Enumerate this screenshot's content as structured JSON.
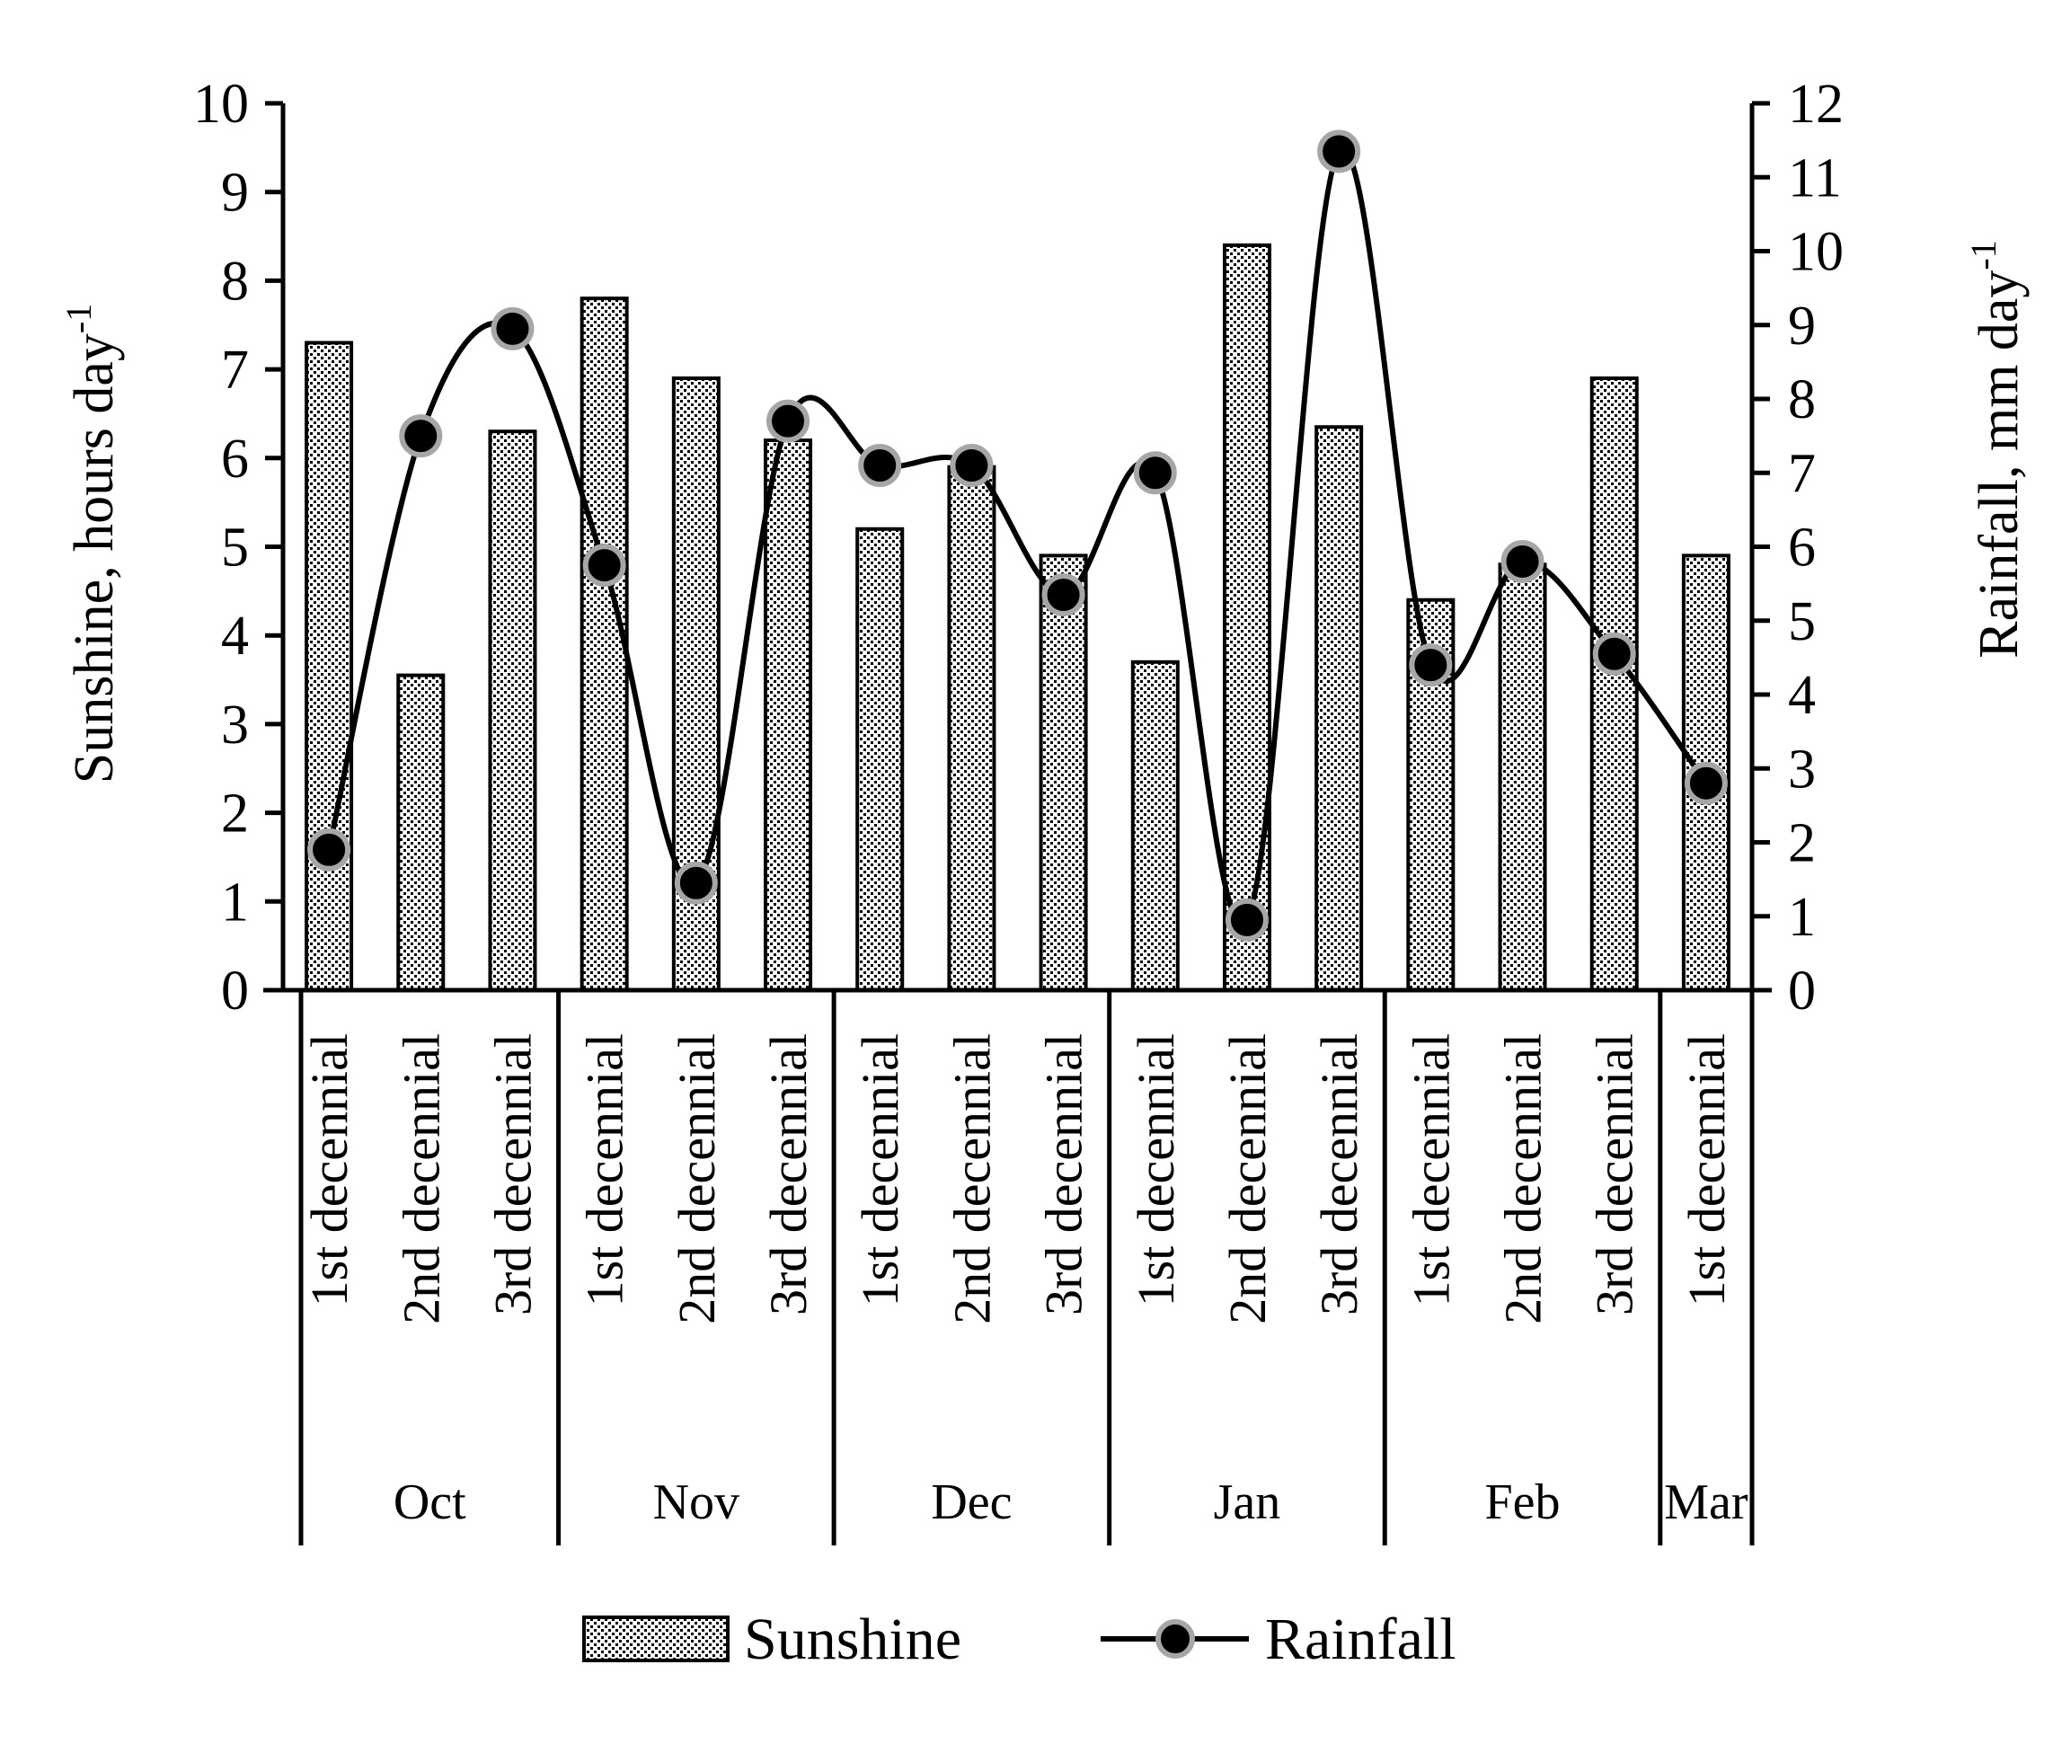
{
  "chart_data": {
    "type": "bar+line",
    "title": "",
    "categories": [
      {
        "label": "1st decennial",
        "month": "Oct"
      },
      {
        "label": "2nd decennial",
        "month": "Oct"
      },
      {
        "label": "3rd decennial",
        "month": "Oct"
      },
      {
        "label": "1st decennial",
        "month": "Nov"
      },
      {
        "label": "2nd decennial",
        "month": "Nov"
      },
      {
        "label": "3rd decennial",
        "month": "Nov"
      },
      {
        "label": "1st decennial",
        "month": "Dec"
      },
      {
        "label": "2nd decennial",
        "month": "Dec"
      },
      {
        "label": "3rd decennial",
        "month": "Dec"
      },
      {
        "label": "1st decennial",
        "month": "Jan"
      },
      {
        "label": "2nd decennial",
        "month": "Jan"
      },
      {
        "label": "3rd decennial",
        "month": "Jan"
      },
      {
        "label": "1st decennial",
        "month": "Feb"
      },
      {
        "label": "2nd decennial",
        "month": "Feb"
      },
      {
        "label": "3rd decennial",
        "month": "Feb"
      },
      {
        "label": "1st decennial",
        "month": "Mar"
      }
    ],
    "months": [
      "Oct",
      "Nov",
      "Dec",
      "Jan",
      "Feb",
      "Mar"
    ],
    "series": [
      {
        "name": "Sunshine",
        "type": "bar",
        "axis": "left",
        "values": [
          7.3,
          3.55,
          6.3,
          7.8,
          6.9,
          6.2,
          5.2,
          5.9,
          4.9,
          3.7,
          8.4,
          6.35,
          4.4,
          4.8,
          6.9,
          4.9
        ]
      },
      {
        "name": "Rainfall",
        "type": "line",
        "axis": "right",
        "values": [
          1.9,
          7.5,
          8.95,
          5.75,
          1.45,
          7.7,
          7.1,
          7.1,
          5.35,
          7.0,
          0.95,
          11.35,
          4.4,
          5.8,
          4.55,
          2.8
        ]
      }
    ],
    "ylabel": "Sunshine, hours day",
    "ylabel_sup": "-1",
    "y2label": "Rainfall, mm day",
    "y2label_sup": "-1",
    "ylim": [
      0,
      10
    ],
    "y2lim": [
      0,
      12
    ],
    "yticks": [
      0,
      1,
      2,
      3,
      4,
      5,
      6,
      7,
      8,
      9,
      10
    ],
    "y2ticks": [
      0,
      1,
      2,
      3,
      4,
      5,
      6,
      7,
      8,
      9,
      10,
      11,
      12
    ],
    "legend": {
      "placement": "bottom-center",
      "items": [
        "Sunshine",
        "Rainfall"
      ]
    },
    "grid": false
  },
  "colors": {
    "axis": "#000000",
    "bar_fill": "#ffffff",
    "bar_dots": "#000000",
    "marker_fill": "#000000",
    "marker_stroke": "#a6a6a6",
    "line": "#000000"
  }
}
